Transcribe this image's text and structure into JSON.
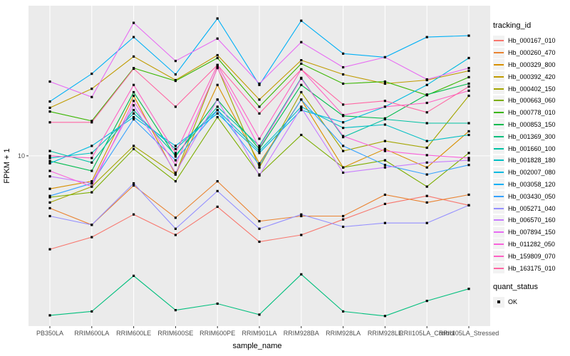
{
  "chart_data": {
    "type": "line",
    "title": "",
    "xlabel": "sample_name",
    "ylabel": "FPKM + 1",
    "yscale": "log10",
    "ylim": [
      0.92,
      82
    ],
    "yticks": [
      10
    ],
    "grid": "major",
    "legend_position": "right",
    "marker": "black-square",
    "categories": [
      "PB350LA",
      "RRIM600LA",
      "RRIM600LE",
      "RRIM600SE",
      "RRIM600PE",
      "RRIM901LA",
      "RRIM928BA",
      "RRIM928LA",
      "RRIM928LE",
      "RRII105LA_Control",
      "RRII105LA_Stressed"
    ],
    "series": [
      {
        "name": "Hb_000167_010",
        "color": "#F8766D",
        "values": [
          2.7,
          3.2,
          4.4,
          3.3,
          4.9,
          3.0,
          3.3,
          4.1,
          5.1,
          5.7,
          5.0
        ]
      },
      {
        "name": "Hb_000260_470",
        "color": "#EA8331",
        "values": [
          4.8,
          3.8,
          6.6,
          4.2,
          7.0,
          4.0,
          4.3,
          4.3,
          5.8,
          5.2,
          5.8
        ]
      },
      {
        "name": "Hb_000329_800",
        "color": "#D89000",
        "values": [
          6.3,
          7.0,
          23.2,
          7.7,
          27.0,
          9.0,
          22.0,
          8.5,
          11.0,
          8.5,
          14.1
        ]
      },
      {
        "name": "Hb_000392_420",
        "color": "#C09B00",
        "values": [
          19.6,
          25.6,
          40.2,
          28.9,
          41.0,
          22.0,
          38.2,
          31.3,
          27.5,
          28.9,
          32.9
        ]
      },
      {
        "name": "Hb_000402_150",
        "color": "#A3A500",
        "values": [
          5.2,
          6.5,
          11.5,
          7.7,
          34.6,
          8.5,
          24.4,
          10.7,
          12.3,
          11.2,
          23.2
        ]
      },
      {
        "name": "Hb_000663_060",
        "color": "#7CAE00",
        "values": [
          5.6,
          6.0,
          11.0,
          7.0,
          17.2,
          7.7,
          13.4,
          8.5,
          9.4,
          6.5,
          10.4
        ]
      },
      {
        "name": "Hb_000778_010",
        "color": "#39B600",
        "values": [
          18.6,
          16.3,
          34.2,
          28.6,
          39.4,
          19.9,
          36.4,
          27.5,
          28.3,
          23.4,
          30.1
        ]
      },
      {
        "name": "Hb_000853_150",
        "color": "#00BB4E",
        "values": [
          9.3,
          8.1,
          24.4,
          9.9,
          22.0,
          11.0,
          27.0,
          17.5,
          16.9,
          23.6,
          27.5
        ]
      },
      {
        "name": "Hb_001369_300",
        "color": "#00BF7D",
        "values": [
          1.07,
          1.13,
          1.86,
          1.15,
          1.26,
          1.08,
          1.9,
          1.13,
          1.06,
          1.31,
          1.55
        ]
      },
      {
        "name": "Hb_001660_100",
        "color": "#00C1A3",
        "values": [
          10.7,
          9.1,
          19.0,
          10.1,
          19.9,
          11.5,
          29.8,
          13.0,
          16.7,
          15.8,
          15.8
        ]
      },
      {
        "name": "Hb_001828_180",
        "color": "#00BFC4",
        "values": [
          9.7,
          10.4,
          18.1,
          11.0,
          19.0,
          10.7,
          19.9,
          14.8,
          15.5,
          12.3,
          13.4
        ]
      },
      {
        "name": "Hb_002007_080",
        "color": "#00BAE0",
        "values": [
          9.0,
          11.5,
          17.2,
          11.5,
          18.1,
          10.4,
          19.0,
          16.0,
          19.9,
          27.0,
          39.4
        ]
      },
      {
        "name": "Hb_003058_120",
        "color": "#00B0F6",
        "values": [
          21.4,
          31.6,
          52.8,
          31.3,
          68.5,
          27.0,
          66.4,
          41.9,
          39.8,
          52.8,
          53.9
        ]
      },
      {
        "name": "Hb_003430_050",
        "color": "#35A2FF",
        "values": [
          5.7,
          6.8,
          16.7,
          9.4,
          19.0,
          8.8,
          22.0,
          11.5,
          8.8,
          7.7,
          8.8
        ]
      },
      {
        "name": "Hb_005271_040",
        "color": "#9590FF",
        "values": [
          4.3,
          3.8,
          6.8,
          3.6,
          6.1,
          3.6,
          4.4,
          3.7,
          3.9,
          3.9,
          5.0
        ]
      },
      {
        "name": "Hb_006570_160",
        "color": "#C77CFF",
        "values": [
          7.5,
          6.8,
          20.3,
          7.9,
          22.0,
          7.6,
          19.6,
          7.9,
          8.5,
          9.1,
          9.4
        ]
      },
      {
        "name": "Hb_007894_150",
        "color": "#E76BF3",
        "values": [
          28.3,
          22.8,
          64.5,
          37.8,
          51.7,
          27.5,
          49.2,
          34.6,
          39.8,
          29.2,
          34.2
        ]
      },
      {
        "name": "Hb_011282_050",
        "color": "#FA62DB",
        "values": [
          8.1,
          6.5,
          21.6,
          8.8,
          34.2,
          11.2,
          29.5,
          13.2,
          10.7,
          10.1,
          9.7
        ]
      },
      {
        "name": "Hb_159809_070",
        "color": "#FF61C3",
        "values": [
          10.0,
          9.7,
          27.0,
          10.4,
          35.7,
          12.7,
          33.6,
          17.7,
          19.9,
          21.0,
          24.9
        ]
      },
      {
        "name": "Hb_163175_010",
        "color": "#FF67A4",
        "values": [
          16.0,
          16.0,
          33.9,
          19.9,
          35.7,
          18.1,
          33.6,
          20.5,
          21.6,
          18.4,
          26.4
        ]
      }
    ],
    "legend": {
      "color_title": "tracking_id",
      "shape_title": "quant_status",
      "shape_items": [
        "OK"
      ]
    },
    "style": {
      "panel_bg": "#EBEBEB",
      "grid_color": "#FFFFFF",
      "marker_color": "#000000",
      "tick_color": "#333333",
      "tick_label_color": "#4D4D4D",
      "axis_title_color": "#000000",
      "legend_key_bg": "#F2F2F2"
    }
  }
}
